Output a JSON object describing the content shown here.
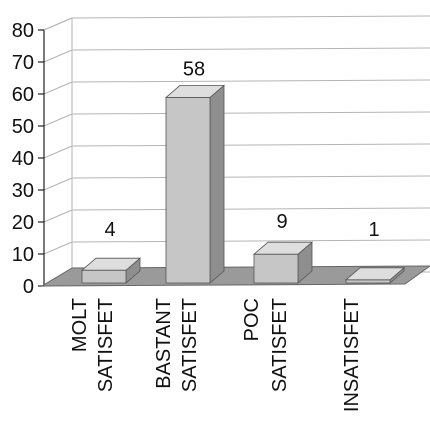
{
  "chart_data": {
    "type": "bar",
    "title": "",
    "xlabel": "",
    "ylabel": "",
    "ylim": [
      0,
      80
    ],
    "yticks": [
      0,
      10,
      20,
      30,
      40,
      50,
      60,
      70,
      80
    ],
    "grid": true,
    "categories": [
      [
        "MOLT",
        "SATISFET"
      ],
      [
        "BASTANT",
        "SATISFET"
      ],
      [
        "POC",
        "SATISFET"
      ],
      [
        "INSATISFET"
      ]
    ],
    "values": [
      4,
      58,
      9,
      1
    ],
    "data_labels": [
      "4",
      "58",
      "9",
      "1"
    ],
    "colors": {
      "bar_front": "#c6c6c6",
      "bar_top": "#dedede",
      "bar_side": "#8e8e8e",
      "floor": "#9a9a9a",
      "grid": "#b5b5b5",
      "axis": "#222222"
    }
  }
}
